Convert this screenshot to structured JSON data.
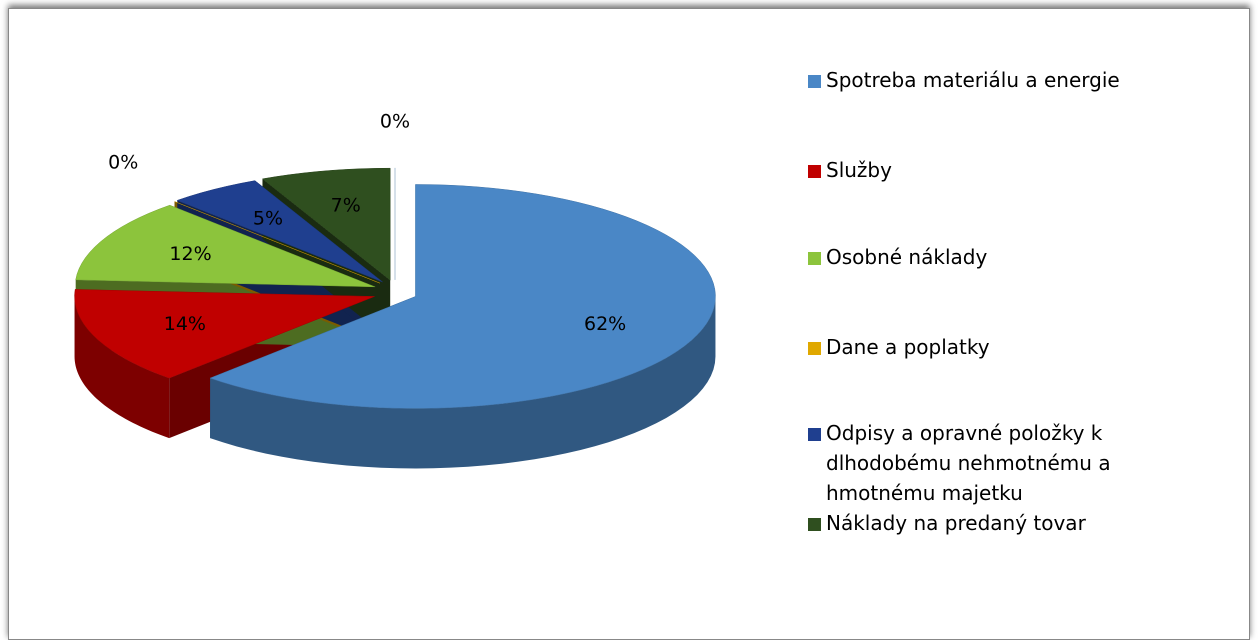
{
  "chart_data": {
    "type": "pie3d",
    "categories": [
      "Spotreba materiálu a energie",
      "Služby",
      "Osobné náklady",
      "Dane a poplatky",
      "Odpisy a opravné položky k dlhodobému nehmotnému a hmotnému majetku",
      "Náklady na predaný tovar",
      null
    ],
    "values": [
      62,
      14,
      12,
      0,
      5,
      7,
      0
    ],
    "value_labels": [
      "62%",
      "14%",
      "12%",
      "0%",
      "5%",
      "7%",
      "0%"
    ],
    "colors": [
      "#4a87c6",
      "#c00000",
      "#8cc43c",
      "#e0a800",
      "#1f3f8f",
      "#2f4f1f",
      "#a9c9ea"
    ],
    "legend": "right"
  }
}
